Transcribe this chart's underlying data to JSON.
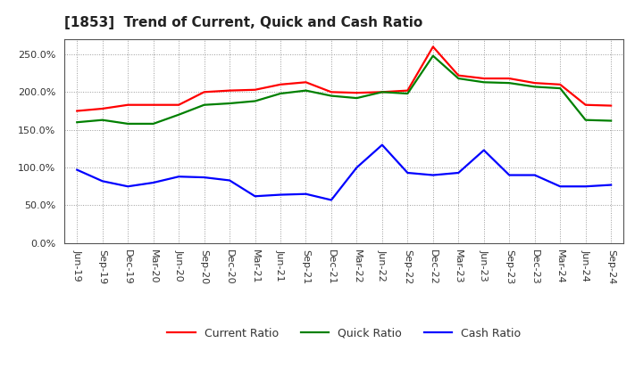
{
  "title": "[1853]  Trend of Current, Quick and Cash Ratio",
  "x_labels": [
    "Jun-19",
    "Sep-19",
    "Dec-19",
    "Mar-20",
    "Jun-20",
    "Sep-20",
    "Dec-20",
    "Mar-21",
    "Jun-21",
    "Sep-21",
    "Dec-21",
    "Mar-22",
    "Jun-22",
    "Sep-22",
    "Dec-22",
    "Mar-23",
    "Jun-23",
    "Sep-23",
    "Dec-23",
    "Mar-24",
    "Jun-24",
    "Sep-24"
  ],
  "current_ratio": [
    175,
    178,
    183,
    183,
    183,
    200,
    202,
    203,
    210,
    213,
    200,
    199,
    200,
    202,
    260,
    222,
    218,
    218,
    212,
    210,
    183,
    182
  ],
  "quick_ratio": [
    160,
    163,
    158,
    158,
    170,
    183,
    185,
    188,
    198,
    202,
    195,
    192,
    200,
    198,
    248,
    218,
    213,
    212,
    207,
    205,
    163,
    162
  ],
  "cash_ratio": [
    97,
    82,
    75,
    80,
    88,
    87,
    83,
    62,
    64,
    65,
    57,
    100,
    130,
    93,
    90,
    93,
    123,
    90,
    90,
    75,
    75,
    77
  ],
  "current_color": "#ff0000",
  "quick_color": "#008000",
  "cash_color": "#0000ff",
  "ylim": [
    0,
    270
  ],
  "yticks": [
    0,
    50,
    100,
    150,
    200,
    250
  ],
  "background_color": "#ffffff",
  "plot_bg_color": "#ffffff",
  "grid_color": "#999999",
  "legend_labels": [
    "Current Ratio",
    "Quick Ratio",
    "Cash Ratio"
  ],
  "title_fontsize": 11,
  "tick_fontsize": 8,
  "legend_fontsize": 9
}
